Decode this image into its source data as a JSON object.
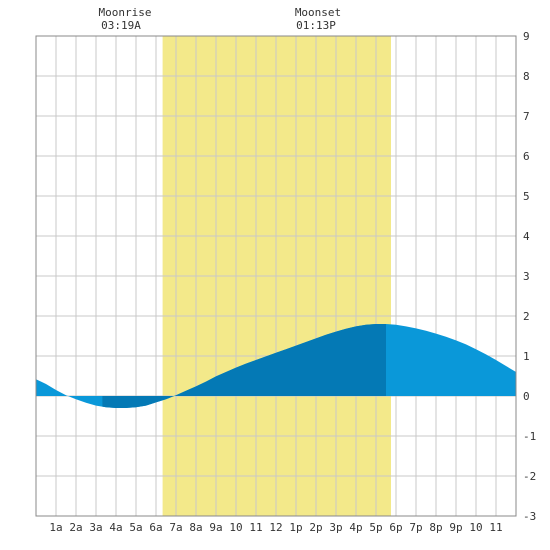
{
  "chart_data": {
    "type": "area",
    "title": "",
    "xlabel": "",
    "ylabel": "",
    "x_range_hours": [
      0,
      24
    ],
    "ylim": [
      -3,
      9
    ],
    "grid": true,
    "x_tick_labels": [
      "1a",
      "2a",
      "3a",
      "4a",
      "5a",
      "6a",
      "7a",
      "8a",
      "9a",
      "10",
      "11",
      "12",
      "1p",
      "2p",
      "3p",
      "4p",
      "5p",
      "6p",
      "7p",
      "8p",
      "9p",
      "10",
      "11"
    ],
    "y_tick_labels": [
      "-3",
      "-2",
      "-1",
      "0",
      "1",
      "2",
      "3",
      "4",
      "5",
      "6",
      "7",
      "8",
      "9"
    ],
    "daylight_hours": [
      6.33,
      17.75
    ],
    "moonrise": {
      "label": "Moonrise",
      "time": "03:19A",
      "hour": 3.32
    },
    "moonset": {
      "label": "Moonset",
      "time": "01:13P",
      "hour": 13.22
    },
    "series": [
      {
        "x": [
          0,
          0.5,
          1,
          1.5,
          2,
          2.5,
          3,
          3.5,
          4,
          4.5,
          5,
          5.5,
          6,
          6.5,
          7,
          7.5,
          8,
          8.5,
          9,
          9.5,
          10,
          10.5,
          11,
          11.5,
          12,
          12.5,
          13,
          13.5,
          14,
          14.5,
          15,
          15.5,
          16,
          16.5,
          17,
          17.5,
          18,
          18.5,
          19,
          19.5,
          20,
          20.5,
          21,
          21.5,
          22,
          22.5,
          23,
          23.5,
          24
        ],
        "values": [
          0.42,
          0.3,
          0.15,
          0.02,
          -0.08,
          -0.17,
          -0.24,
          -0.28,
          -0.3,
          -0.3,
          -0.28,
          -0.24,
          -0.16,
          -0.08,
          0.02,
          0.13,
          0.24,
          0.36,
          0.49,
          0.6,
          0.71,
          0.81,
          0.9,
          0.99,
          1.08,
          1.17,
          1.26,
          1.35,
          1.44,
          1.53,
          1.61,
          1.68,
          1.74,
          1.78,
          1.8,
          1.8,
          1.78,
          1.74,
          1.69,
          1.63,
          1.56,
          1.48,
          1.39,
          1.29,
          1.17,
          1.04,
          0.9,
          0.75,
          0.6
        ]
      }
    ],
    "colors": {
      "daylight": "#f3e98a",
      "tide_fill": "#0a98d9",
      "tide_fill_highlight": "#0479b5",
      "grid": "#c8c8c8",
      "border": "#888888",
      "background": "#ffffff"
    }
  }
}
